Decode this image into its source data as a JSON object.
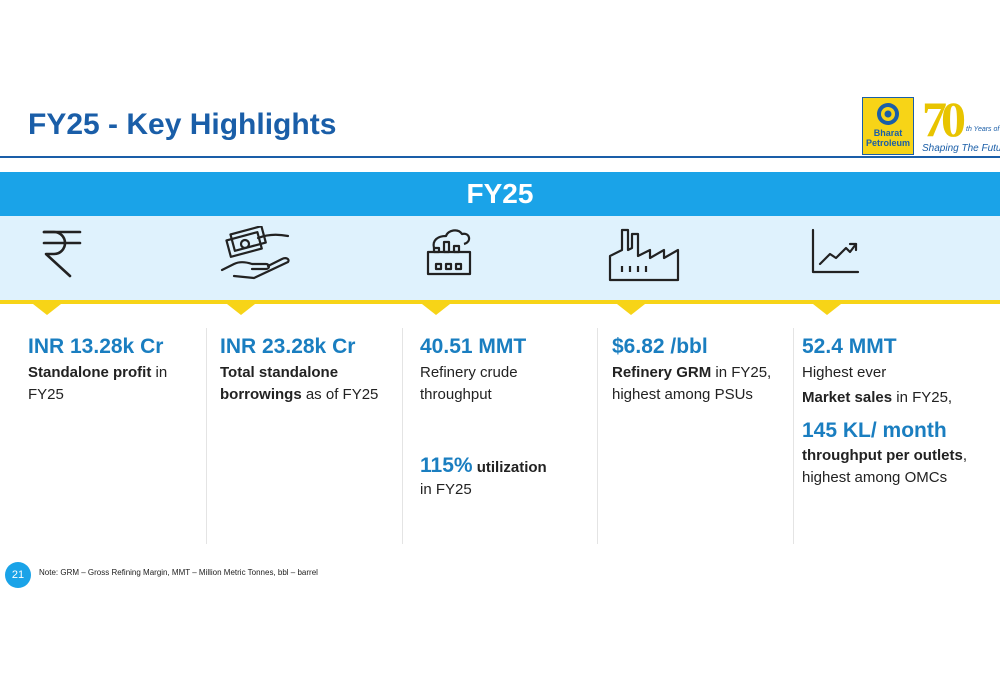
{
  "header": {
    "title": "FY25 - Key Highlights",
    "logo_line1": "Bharat",
    "logo_line2": "Petroleum",
    "anniversary_number": "70",
    "anniversary_years": "th Years of",
    "anniversary_tagline": "Shaping The Future"
  },
  "banner": {
    "label": "FY25"
  },
  "icons": [
    "rupee-icon",
    "money-hand-icon",
    "refinery-icon",
    "factory-icon",
    "growth-chart-icon"
  ],
  "highlights": [
    {
      "headline": "INR 13.28k Cr",
      "bold": "Standalone profit",
      "text": " in FY25"
    },
    {
      "headline": "INR 23.28k Cr",
      "bold": "Total standalone borrowings",
      "text": " as of FY25"
    },
    {
      "headline": "40.51 MMT",
      "text": "Refinery crude throughput",
      "sub_value": "115%",
      "sub_bold": " utilization",
      "sub_text": "in FY25"
    },
    {
      "headline": "$6.82 /bbl",
      "bold": "Refinery GRM",
      "text": " in FY25, highest among PSUs"
    },
    {
      "headline": "52.4 MMT",
      "pre": "Highest ever",
      "bold": "Market sales",
      "text": " in FY25,",
      "sub_value": "145 KL/ month",
      "sub_bold": "throughput per outlets",
      "sub_text": ", highest among OMCs"
    }
  ],
  "footer": {
    "page_number": "21",
    "note": "Note: GRM – Gross Refining Margin, MMT – Million Metric Tonnes, bbl – barrel"
  },
  "colors": {
    "brand_blue": "#1a5ea8",
    "banner_blue": "#1aa3e8",
    "accent_yellow": "#f7d417",
    "value_blue": "#1a7ec0"
  }
}
